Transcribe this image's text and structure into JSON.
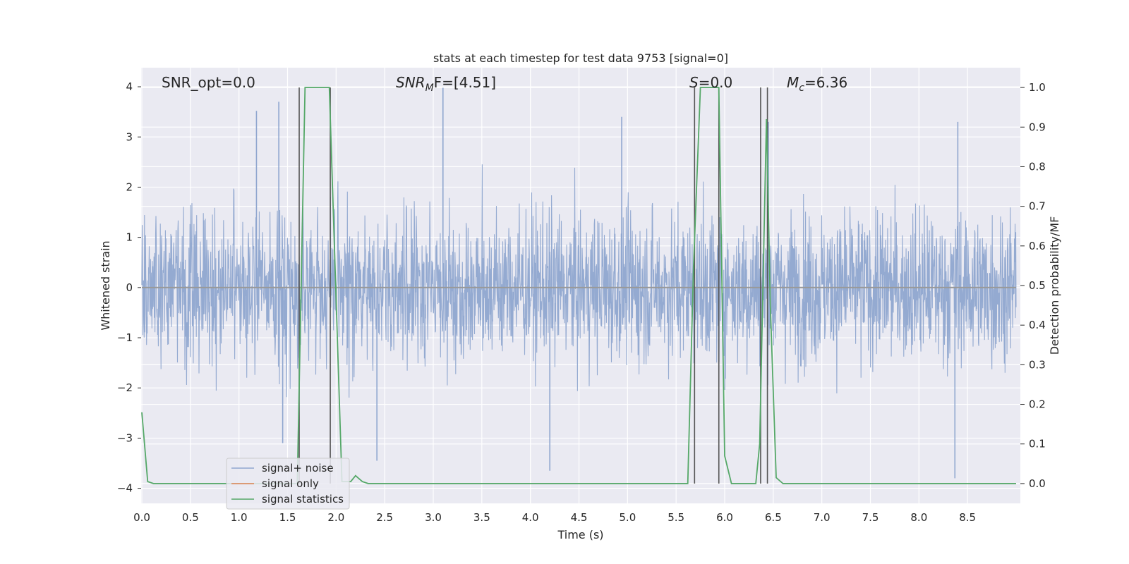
{
  "chart_data": {
    "type": "line",
    "title": "stats at each timestep for test data 9753 [signal=0]",
    "xlabel": "Time (s)",
    "ylabel": "Whitened strain",
    "y2label": "Detection probability/MF",
    "xlim": [
      0,
      9.0
    ],
    "ylim": [
      -4.3,
      4.38
    ],
    "y2lim": [
      -0.05,
      1.05
    ],
    "xticks": [
      "0.0",
      "0.5",
      "1.0",
      "1.5",
      "2.0",
      "2.5",
      "3.0",
      "3.5",
      "4.0",
      "4.5",
      "5.0",
      "5.5",
      "6.0",
      "6.5",
      "7.0",
      "7.5",
      "8.0",
      "8.5"
    ],
    "yticks": [
      "4",
      "3",
      "2",
      "1",
      "0",
      "−1",
      "−2",
      "−3",
      "−4"
    ],
    "y2ticks": [
      "1.0",
      "0.9",
      "0.8",
      "0.7",
      "0.6",
      "0.5",
      "0.4",
      "0.3",
      "0.2",
      "0.1",
      "0.0"
    ],
    "grid": true,
    "legend_position": "lower-left",
    "annotations": {
      "snr_opt": "SNR_opt=0.0",
      "snr_mf_main": "SNR",
      "snr_mf_sub": "M",
      "snr_mf_rest": "F=[4.51]",
      "s_main": "S",
      "s_rest": "=0.0",
      "mc_main": "M",
      "mc_sub": "c",
      "mc_rest": "=6.36"
    },
    "series": [
      {
        "name": "signal+ noise",
        "color": "#8fa6cf",
        "description_values": "noise trace, typical range about -2.5 to 2.5",
        "peaks": [
          [
            1.18,
            3.52
          ],
          [
            1.41,
            3.7
          ],
          [
            3.1,
            3.98
          ],
          [
            4.94,
            3.4
          ],
          [
            6.45,
            3.3
          ],
          [
            8.4,
            3.3
          ],
          [
            2.42,
            -3.45
          ],
          [
            4.2,
            -3.65
          ],
          [
            8.37,
            -3.8
          ],
          [
            1.45,
            -3.1
          ]
        ]
      },
      {
        "name": "signal only",
        "color": "#dd8452",
        "values_note": "flat at zero",
        "x": [
          0,
          9.0
        ],
        "y": [
          0,
          0
        ]
      },
      {
        "name": "signal statistics",
        "color": "#55a868",
        "axis": "right",
        "x": [
          0.0,
          0.06,
          0.12,
          1.6,
          1.68,
          1.93,
          2.06,
          2.15,
          2.2,
          2.27,
          2.33,
          5.62,
          5.68,
          5.75,
          5.94,
          6.0,
          6.07,
          6.32,
          6.36,
          6.43,
          6.47,
          6.53,
          6.6,
          9.0
        ],
        "y": [
          0.18,
          0.005,
          0.0,
          0.0,
          1.0,
          1.0,
          0.005,
          0.005,
          0.02,
          0.005,
          0.0,
          0.0,
          0.55,
          1.0,
          1.0,
          0.07,
          0.0,
          0.0,
          0.1,
          0.92,
          0.45,
          0.015,
          0.0,
          0.0
        ]
      }
    ],
    "vertical_markers": [
      {
        "x": 1.62,
        "color": "#555555"
      },
      {
        "x": 1.94,
        "color": "#555555"
      },
      {
        "x": 5.69,
        "color": "#555555"
      },
      {
        "x": 5.94,
        "color": "#555555"
      },
      {
        "x": 6.37,
        "color": "#555555"
      },
      {
        "x": 6.44,
        "color": "#555555"
      }
    ],
    "colors": {
      "plot_background": "#eaeaf2",
      "grid": "#ffffff",
      "zero_line": "#999999"
    }
  }
}
